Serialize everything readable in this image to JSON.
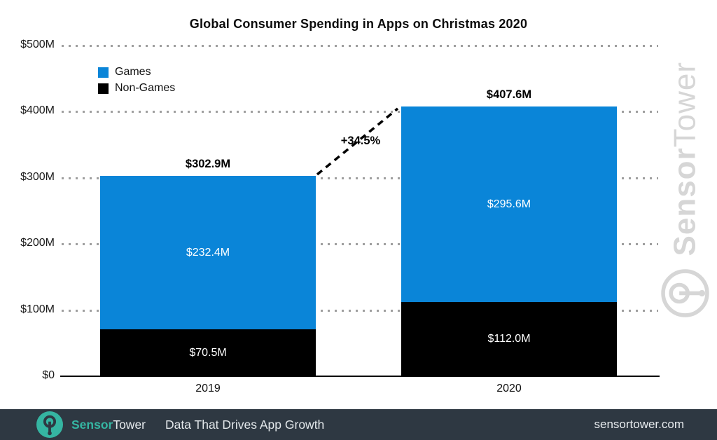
{
  "title": "Global Consumer Spending in Apps on Christmas 2020",
  "chart_data": {
    "type": "bar",
    "stacked": true,
    "title": "Global Consumer Spending in Apps on Christmas 2020",
    "categories": [
      "2019",
      "2020"
    ],
    "series": [
      {
        "name": "Games",
        "color": "#0a85d8",
        "values": [
          232.4,
          295.6
        ],
        "value_labels": [
          "$232.4M",
          "$295.6M"
        ]
      },
      {
        "name": "Non-Games",
        "color": "#000000",
        "values": [
          70.5,
          112.0
        ],
        "value_labels": [
          "$70.5M",
          "$112.0M"
        ]
      }
    ],
    "totals": [
      302.9,
      407.6
    ],
    "total_labels": [
      "$302.9M",
      "$407.6M"
    ],
    "growth_annotation": "+34.5%",
    "ylim": [
      0,
      500
    ],
    "yticks": [
      {
        "label": "$500M",
        "value": 500
      },
      {
        "label": "$400M",
        "value": 400
      },
      {
        "label": "$300M",
        "value": 300
      },
      {
        "label": "$200M",
        "value": 200
      },
      {
        "label": "$100M",
        "value": 100
      },
      {
        "label": "$0",
        "value": 0
      }
    ],
    "grid": "dotted-horizontal",
    "legend_position": "top-left"
  },
  "watermark": {
    "sensor": "Sensor",
    "tower": "Tower",
    "color": "#d6d6d6"
  },
  "footer": {
    "sensor": "Sensor",
    "tower": "Tower",
    "tagline": "Data That Drives App Growth",
    "website": "sensortower.com",
    "background": "#2e3842",
    "accent": "#35b5a2"
  }
}
